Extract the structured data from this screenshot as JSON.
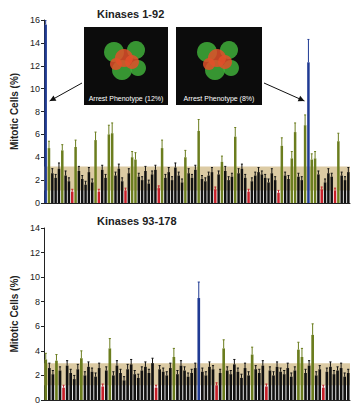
{
  "chart_data": [
    {
      "type": "bar",
      "title": "Kinases 1-92",
      "y_label": "Mitotic Cells (%)",
      "values": [
        15.6,
        4.8,
        2.6,
        2.2,
        3.0,
        4.6,
        2.4,
        1.9,
        1.0,
        4.9,
        2.8,
        2.1,
        1.6,
        2.7,
        1.8,
        5.5,
        1.0,
        2.9,
        2.2,
        6.0,
        6.1,
        2.4,
        3.0,
        1.9,
        1.1,
        2.6,
        4.0,
        3.8,
        2.3,
        2.0,
        2.8,
        1.7,
        2.5,
        2.9,
        1.3,
        4.8,
        2.2,
        2.7,
        2.0,
        3.1,
        2.4,
        1.8,
        4.0,
        2.6,
        2.2,
        2.9,
        6.3,
        2.1,
        1.9,
        2.4,
        2.7,
        1.2,
        2.5,
        3.6,
        2.8,
        2.0,
        2.3,
        5.8,
        2.6,
        3.0,
        2.2,
        1.0,
        1.9,
        2.4,
        2.7,
        2.5,
        2.2,
        1.8,
        2.6,
        2.0,
        0.9,
        5.0,
        2.4,
        2.1,
        3.9,
        6.2,
        2.3,
        2.0,
        6.8,
        12.3,
        3.8,
        3.9,
        2.5,
        1.2,
        1.8,
        2.6,
        2.3,
        1.1,
        5.4,
        2.4,
        2.0,
        2.7
      ],
      "errors": [
        0.4,
        0.6,
        0.4,
        0.3,
        0.5,
        0.5,
        0.4,
        0.3,
        0.2,
        0.6,
        0.4,
        0.3,
        0.3,
        0.4,
        0.3,
        0.7,
        0.2,
        0.4,
        0.3,
        0.8,
        0.9,
        0.3,
        0.4,
        0.3,
        0.2,
        0.4,
        0.5,
        0.6,
        0.3,
        0.3,
        0.4,
        0.3,
        0.3,
        0.4,
        0.2,
        0.7,
        0.3,
        0.4,
        0.3,
        0.4,
        0.3,
        0.3,
        0.6,
        0.4,
        0.3,
        0.4,
        1.0,
        0.3,
        0.3,
        0.3,
        0.4,
        0.2,
        0.3,
        0.5,
        0.4,
        0.3,
        0.3,
        0.8,
        0.4,
        0.4,
        0.3,
        0.2,
        0.3,
        0.3,
        0.4,
        0.3,
        0.3,
        0.3,
        0.4,
        0.3,
        0.2,
        0.7,
        0.3,
        0.3,
        0.6,
        0.8,
        0.3,
        0.3,
        0.9,
        2.0,
        0.5,
        0.6,
        0.3,
        0.2,
        0.3,
        0.4,
        0.3,
        0.2,
        0.7,
        0.3,
        0.3,
        0.4
      ],
      "colors": [
        "#1f3a93",
        "#6b7d1e",
        "#111111",
        "#111111",
        "#111111",
        "#6b7d1e",
        "#111111",
        "#111111",
        "#c8202a",
        "#6b7d1e",
        "#111111",
        "#111111",
        "#111111",
        "#111111",
        "#111111",
        "#6b7d1e",
        "#c8202a",
        "#111111",
        "#111111",
        "#6b7d1e",
        "#6b7d1e",
        "#111111",
        "#111111",
        "#111111",
        "#c8202a",
        "#111111",
        "#6b7d1e",
        "#6b7d1e",
        "#111111",
        "#111111",
        "#111111",
        "#111111",
        "#111111",
        "#111111",
        "#c8202a",
        "#6b7d1e",
        "#111111",
        "#111111",
        "#111111",
        "#111111",
        "#111111",
        "#111111",
        "#6b7d1e",
        "#111111",
        "#111111",
        "#111111",
        "#6b7d1e",
        "#111111",
        "#111111",
        "#111111",
        "#111111",
        "#c8202a",
        "#111111",
        "#6b7d1e",
        "#111111",
        "#111111",
        "#111111",
        "#6b7d1e",
        "#111111",
        "#111111",
        "#111111",
        "#c8202a",
        "#111111",
        "#111111",
        "#111111",
        "#111111",
        "#111111",
        "#111111",
        "#111111",
        "#111111",
        "#c8202a",
        "#6b7d1e",
        "#111111",
        "#111111",
        "#6b7d1e",
        "#6b7d1e",
        "#111111",
        "#111111",
        "#6b7d1e",
        "#1f3a93",
        "#6b7d1e",
        "#6b7d1e",
        "#111111",
        "#c8202a",
        "#111111",
        "#111111",
        "#111111",
        "#c8202a",
        "#6b7d1e",
        "#111111",
        "#111111",
        "#111111"
      ],
      "ylim": [
        0,
        16
      ],
      "yticks": [
        0,
        2,
        4,
        6,
        8,
        10,
        12,
        14,
        16
      ],
      "shaded_range": [
        1.1,
        3.2
      ],
      "annotations": [
        {
          "text": "Arrest Phenotype (12%)",
          "target": 0
        },
        {
          "text": "Arrest Phenotype (8%)",
          "target": 79
        }
      ],
      "grid": false,
      "tick_labels": "y"
    },
    {
      "type": "bar",
      "title": "Kinases 93-178",
      "y_label": "Mitotic Cells (%)",
      "values": [
        3.3,
        2.6,
        2.1,
        3.2,
        2.4,
        1.0,
        2.8,
        2.2,
        1.7,
        2.5,
        3.4,
        2.0,
        2.7,
        2.3,
        1.9,
        2.6,
        1.1,
        2.4,
        4.2,
        2.0,
        2.8,
        2.2,
        1.6,
        2.5,
        2.9,
        2.1,
        1.8,
        2.4,
        2.7,
        2.2,
        3.0,
        1.0,
        2.5,
        2.3,
        2.0,
        2.6,
        3.5,
        2.1,
        2.8,
        2.4,
        1.9,
        2.2,
        2.6,
        8.3,
        2.3,
        2.0,
        2.7,
        2.5,
        1.2,
        2.2,
        4.2,
        2.4,
        2.1,
        2.9,
        2.3,
        1.8,
        2.6,
        2.0,
        3.7,
        2.5,
        2.2,
        2.8,
        1.1,
        2.4,
        2.0,
        2.7,
        2.3,
        2.1,
        2.6,
        1.9,
        2.4,
        4.1,
        3.5,
        2.2,
        2.8,
        5.3,
        2.0,
        2.5,
        1.0,
        2.3,
        2.7,
        2.1,
        2.4,
        2.6,
        1.9,
        2.2
      ],
      "errors": [
        0.5,
        0.4,
        0.3,
        0.5,
        0.3,
        0.2,
        0.4,
        0.3,
        0.3,
        0.4,
        0.6,
        0.3,
        0.4,
        0.3,
        0.3,
        0.4,
        0.2,
        0.3,
        0.8,
        0.3,
        0.4,
        0.3,
        0.3,
        0.4,
        0.4,
        0.3,
        0.3,
        0.3,
        0.4,
        0.3,
        0.4,
        0.2,
        0.3,
        0.3,
        0.3,
        0.4,
        0.7,
        0.3,
        0.4,
        0.3,
        0.3,
        0.3,
        0.4,
        1.3,
        0.3,
        0.3,
        0.4,
        0.3,
        0.2,
        0.3,
        0.7,
        0.3,
        0.3,
        0.4,
        0.3,
        0.3,
        0.4,
        0.3,
        0.6,
        0.3,
        0.3,
        0.4,
        0.2,
        0.3,
        0.3,
        0.4,
        0.3,
        0.3,
        0.4,
        0.3,
        0.3,
        0.6,
        0.7,
        0.3,
        0.4,
        0.9,
        0.3,
        0.3,
        0.2,
        0.3,
        0.4,
        0.3,
        0.3,
        0.4,
        0.3,
        0.3
      ],
      "colors": [
        "#6b7d1e",
        "#111111",
        "#111111",
        "#6b7d1e",
        "#111111",
        "#c8202a",
        "#111111",
        "#111111",
        "#111111",
        "#111111",
        "#6b7d1e",
        "#111111",
        "#111111",
        "#111111",
        "#111111",
        "#111111",
        "#c8202a",
        "#111111",
        "#6b7d1e",
        "#111111",
        "#111111",
        "#111111",
        "#111111",
        "#111111",
        "#111111",
        "#111111",
        "#111111",
        "#111111",
        "#111111",
        "#111111",
        "#111111",
        "#c8202a",
        "#111111",
        "#111111",
        "#111111",
        "#111111",
        "#6b7d1e",
        "#111111",
        "#111111",
        "#111111",
        "#111111",
        "#111111",
        "#111111",
        "#1f3a93",
        "#111111",
        "#111111",
        "#111111",
        "#111111",
        "#c8202a",
        "#111111",
        "#6b7d1e",
        "#111111",
        "#111111",
        "#111111",
        "#111111",
        "#111111",
        "#111111",
        "#111111",
        "#6b7d1e",
        "#111111",
        "#111111",
        "#111111",
        "#c8202a",
        "#111111",
        "#111111",
        "#111111",
        "#111111",
        "#111111",
        "#111111",
        "#111111",
        "#111111",
        "#6b7d1e",
        "#6b7d1e",
        "#111111",
        "#111111",
        "#6b7d1e",
        "#111111",
        "#111111",
        "#c8202a",
        "#111111",
        "#111111",
        "#111111",
        "#111111",
        "#111111",
        "#111111",
        "#111111"
      ],
      "ylim": [
        0,
        14
      ],
      "yticks": [
        0,
        2,
        4,
        6,
        8,
        10,
        12,
        14
      ],
      "shaded_range": [
        1.2,
        3.0
      ],
      "grid": false,
      "tick_labels": "y"
    }
  ]
}
